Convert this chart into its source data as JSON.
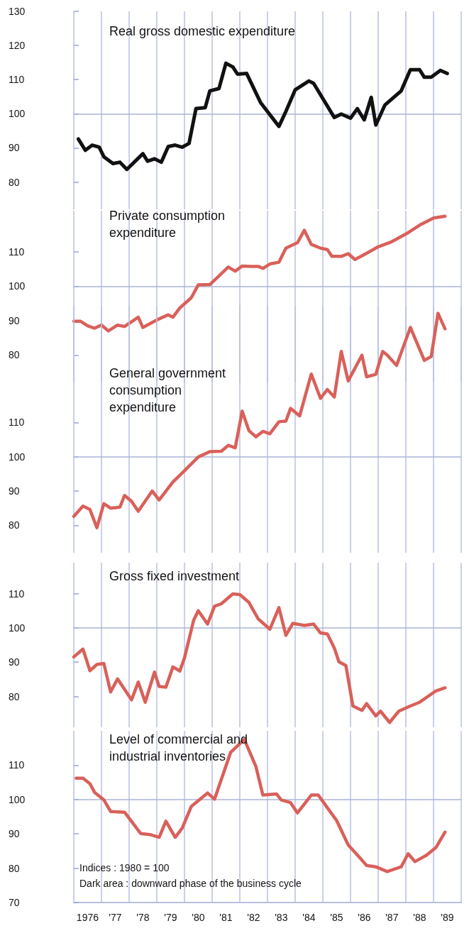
{
  "chart_data": [
    {
      "type": "line",
      "title": "Real gross domestic expenditure",
      "color": "#111111",
      "marker": "none",
      "grid": "x",
      "tick_labels": "y",
      "xlim": [
        "1976-01",
        "1990-01"
      ],
      "ylim": [
        72,
        130
      ],
      "yticks": [
        80,
        90,
        100,
        110,
        120,
        130
      ],
      "xticks": [
        {
          "value": "1976",
          "label": null
        },
        {
          "value": "1977",
          "label": null
        },
        {
          "value": "1978",
          "label": null
        },
        {
          "value": "1979",
          "label": null
        },
        {
          "value": "1980",
          "label": null
        },
        {
          "value": "1981",
          "label": null
        },
        {
          "value": "1982",
          "label": null
        },
        {
          "value": "1983",
          "label": null
        },
        {
          "value": "1984",
          "label": null
        },
        {
          "value": "1985",
          "label": null
        },
        {
          "value": "1986",
          "label": null
        },
        {
          "value": "1987",
          "label": null
        },
        {
          "value": "1988",
          "label": null
        },
        {
          "value": "1989",
          "label": null
        },
        {
          "value": "1990",
          "label": null
        }
      ],
      "ref_lines": [
        {
          "axis": "y",
          "value": 100,
          "color": "#a9b4d6"
        }
      ],
      "x": [
        "1976-03",
        "1976-06",
        "1976-09",
        "1976-12",
        "1977-02",
        "1977-06",
        "1977-09",
        "1977-12",
        "1978-07",
        "1978-09",
        "1978-12",
        "1979-03",
        "1979-06",
        "1979-09",
        "1979-12",
        "1980-03",
        "1980-06",
        "1980-10",
        "1980-12",
        "1981-04",
        "1981-07",
        "1981-10",
        "1981-12",
        "1982-04",
        "1982-10",
        "1983-06",
        "1983-09",
        "1984-01",
        "1984-07",
        "1984-09",
        "1985-06",
        "1985-09",
        "1986-01",
        "1986-04",
        "1986-07",
        "1986-10",
        "1986-12",
        "1987-04",
        "1987-11",
        "1988-03",
        "1988-07",
        "1988-09",
        "1988-12",
        "1989-04",
        "1989-07"
      ],
      "values": [
        92.6,
        89.3,
        90.8,
        90.2,
        87.4,
        85.4,
        85.8,
        83.7,
        88.3,
        86.1,
        86.8,
        85.8,
        90.4,
        90.8,
        90.2,
        91.3,
        101.5,
        101.8,
        106.7,
        107.4,
        114.8,
        113.7,
        111.6,
        111.8,
        103.3,
        96.3,
        100.7,
        107,
        109.6,
        108.9,
        98.9,
        99.9,
        98.7,
        101.5,
        98.2,
        104.8,
        96.7,
        102.6,
        106.7,
        112.9,
        112.9,
        110.7,
        110.7,
        112.7,
        111.8
      ]
    },
    {
      "type": "line",
      "title": "Private consumption expenditure",
      "color": "#d9605a",
      "marker": "none",
      "grid": "x",
      "tick_labels": "y",
      "xlim": [
        "1976-01",
        "1990-01"
      ],
      "ylim": [
        72,
        122
      ],
      "yticks": [
        80,
        90,
        100,
        110
      ],
      "xticks": [
        {
          "value": "1976",
          "label": null
        },
        {
          "value": "1977",
          "label": null
        },
        {
          "value": "1978",
          "label": null
        },
        {
          "value": "1979",
          "label": null
        },
        {
          "value": "1980",
          "label": null
        },
        {
          "value": "1981",
          "label": null
        },
        {
          "value": "1982",
          "label": null
        },
        {
          "value": "1983",
          "label": null
        },
        {
          "value": "1984",
          "label": null
        },
        {
          "value": "1985",
          "label": null
        },
        {
          "value": "1986",
          "label": null
        },
        {
          "value": "1987",
          "label": null
        },
        {
          "value": "1988",
          "label": null
        },
        {
          "value": "1989",
          "label": null
        },
        {
          "value": "1990",
          "label": null
        }
      ],
      "ref_lines": [
        {
          "axis": "y",
          "value": 100,
          "color": "#a9b4d6"
        }
      ],
      "x": [
        "1976-01",
        "1976-04",
        "1976-07",
        "1976-10",
        "1977-01",
        "1977-04",
        "1977-08",
        "1977-11",
        "1978-05",
        "1978-07",
        "1979-01",
        "1979-06",
        "1979-08",
        "1979-11",
        "1980-04",
        "1980-07",
        "1980-12",
        "1981-04",
        "1981-08",
        "1981-11",
        "1982-02",
        "1982-06",
        "1982-09",
        "1982-11",
        "1983-02",
        "1983-06",
        "1983-09",
        "1984-02",
        "1984-05",
        "1984-08",
        "1984-12",
        "1985-03",
        "1985-05",
        "1985-09",
        "1985-12",
        "1986-03",
        "1986-08",
        "1987-01",
        "1987-07",
        "1988-02",
        "1988-07",
        "1989-01",
        "1989-06"
      ],
      "values": [
        89.8,
        89.8,
        88.5,
        87.8,
        88.7,
        87,
        88.7,
        88.3,
        91,
        88,
        90.2,
        91.7,
        91,
        93.7,
        96.7,
        100.4,
        100.5,
        103,
        105.6,
        104.4,
        105.9,
        105.8,
        105.8,
        105.2,
        106.5,
        107,
        111.1,
        112.7,
        116.3,
        112.2,
        111.1,
        110.7,
        108.7,
        108.7,
        109.5,
        107.8,
        109.6,
        111.5,
        113,
        115.6,
        117.8,
        119.9,
        120.4
      ]
    },
    {
      "type": "line",
      "title": "General government consumption expenditure",
      "color": "#d9605a",
      "marker": "none",
      "grid": "x",
      "tick_labels": "y",
      "xlim": [
        "1976-01",
        "1990-01"
      ],
      "ylim": [
        72,
        144
      ],
      "yticks": [
        80,
        90,
        100,
        110
      ],
      "xticks": [
        {
          "value": "1976",
          "label": null
        },
        {
          "value": "1977",
          "label": null
        },
        {
          "value": "1978",
          "label": null
        },
        {
          "value": "1979",
          "label": null
        },
        {
          "value": "1980",
          "label": null
        },
        {
          "value": "1981",
          "label": null
        },
        {
          "value": "1982",
          "label": null
        },
        {
          "value": "1983",
          "label": null
        },
        {
          "value": "1984",
          "label": null
        },
        {
          "value": "1985",
          "label": null
        },
        {
          "value": "1986",
          "label": null
        },
        {
          "value": "1987",
          "label": null
        },
        {
          "value": "1988",
          "label": null
        },
        {
          "value": "1989",
          "label": null
        },
        {
          "value": "1990",
          "label": null
        }
      ],
      "ref_lines": [
        {
          "axis": "y",
          "value": 100,
          "color": "#a9b4d6"
        }
      ],
      "x": [
        "1976-01",
        "1976-05",
        "1976-08",
        "1976-11",
        "1977-02",
        "1977-05",
        "1977-09",
        "1977-11",
        "1978-02",
        "1978-05",
        "1978-11",
        "1979-02",
        "1979-08",
        "1980-01",
        "1980-07",
        "1980-12",
        "1981-05",
        "1981-08",
        "1981-11",
        "1982-02",
        "1982-05",
        "1982-08",
        "1982-11",
        "1983-02",
        "1983-06",
        "1983-09",
        "1983-11",
        "1984-03",
        "1984-08",
        "1984-12",
        "1985-03",
        "1985-06",
        "1985-09",
        "1985-12",
        "1986-06",
        "1986-08",
        "1986-12",
        "1987-03",
        "1987-05",
        "1987-09",
        "1988-03",
        "1988-09",
        "1988-12",
        "1989-03",
        "1989-06"
      ],
      "values": [
        82.6,
        85.6,
        84.6,
        79.3,
        86.3,
        85,
        85.3,
        88.7,
        87,
        84.1,
        90,
        87.4,
        92.6,
        95.9,
        99.9,
        101.5,
        101.6,
        103.3,
        102.6,
        113.3,
        107.6,
        105.8,
        107.4,
        106.7,
        110.2,
        110.4,
        114.1,
        111.9,
        124.1,
        117,
        119.6,
        117.4,
        130.7,
        122.1,
        129.6,
        123.3,
        124,
        130.7,
        129.6,
        126.6,
        137.7,
        128.1,
        129.2,
        141.8,
        137.3
      ]
    },
    {
      "type": "line",
      "title": "Gross fixed investment",
      "color": "#d9605a",
      "marker": "none",
      "grid": "x",
      "tick_labels": "y",
      "xlim": [
        "1976-01",
        "1990-01"
      ],
      "ylim": [
        71,
        119
      ],
      "yticks": [
        80,
        90,
        100,
        110
      ],
      "xticks": [
        {
          "value": "1976",
          "label": null
        },
        {
          "value": "1977",
          "label": null
        },
        {
          "value": "1978",
          "label": null
        },
        {
          "value": "1979",
          "label": null
        },
        {
          "value": "1980",
          "label": null
        },
        {
          "value": "1981",
          "label": null
        },
        {
          "value": "1982",
          "label": null
        },
        {
          "value": "1983",
          "label": null
        },
        {
          "value": "1984",
          "label": null
        },
        {
          "value": "1985",
          "label": null
        },
        {
          "value": "1986",
          "label": null
        },
        {
          "value": "1987",
          "label": null
        },
        {
          "value": "1988",
          "label": null
        },
        {
          "value": "1989",
          "label": null
        },
        {
          "value": "1990",
          "label": null
        }
      ],
      "ref_lines": [
        {
          "axis": "y",
          "value": 100,
          "color": "#a9b4d6"
        }
      ],
      "x": [
        "1976-01",
        "1976-05",
        "1976-08",
        "1976-11",
        "1977-02",
        "1977-05",
        "1977-08",
        "1978-02",
        "1978-05",
        "1978-08",
        "1978-12",
        "1979-02",
        "1979-05",
        "1979-08",
        "1979-11",
        "1980-01",
        "1980-05",
        "1980-07",
        "1980-11",
        "1981-02",
        "1981-05",
        "1981-10",
        "1982-01",
        "1982-05",
        "1982-09",
        "1983-02",
        "1983-06",
        "1983-09",
        "1983-12",
        "1984-05",
        "1984-09",
        "1984-12",
        "1985-03",
        "1985-06",
        "1985-08",
        "1985-11",
        "1986-02",
        "1986-06",
        "1986-08",
        "1986-12",
        "1987-02",
        "1987-06",
        "1987-10",
        "1988-03",
        "1988-07",
        "1989-02",
        "1989-06"
      ],
      "values": [
        91.5,
        93.8,
        87.5,
        89.3,
        89.6,
        81.3,
        85.1,
        79,
        84.2,
        78.3,
        87.1,
        82.9,
        82.7,
        88.6,
        87.4,
        91.2,
        102.2,
        105,
        101.1,
        106.3,
        107,
        109.9,
        109.7,
        107.4,
        102.6,
        99.6,
        105.9,
        97.8,
        101.3,
        100.7,
        101.1,
        98.5,
        98.2,
        94.1,
        90.1,
        89,
        77.2,
        75.9,
        77.9,
        74.3,
        75.7,
        72.4,
        75.7,
        77.2,
        78.3,
        81.6,
        82.5
      ]
    },
    {
      "type": "line",
      "title": "Level of commercial and industrial inventories",
      "color": "#d9605a",
      "marker": "none",
      "grid": "x",
      "xlim": [
        "1976-01",
        "1990-01"
      ],
      "ylim": [
        70,
        120
      ],
      "yticks": [
        70,
        80,
        90,
        100,
        110
      ],
      "xticks": [
        {
          "value": "1976",
          "label": null
        },
        {
          "value": "1977",
          "label": null
        },
        {
          "value": "1978",
          "label": null
        },
        {
          "value": "1979",
          "label": null
        },
        {
          "value": "1980",
          "label": null
        },
        {
          "value": "1981",
          "label": null
        },
        {
          "value": "1982",
          "label": null
        },
        {
          "value": "1983",
          "label": null
        },
        {
          "value": "1984",
          "label": null
        },
        {
          "value": "1985",
          "label": null
        },
        {
          "value": "1986",
          "label": null
        },
        {
          "value": "1987",
          "label": null
        },
        {
          "value": "1988",
          "label": null
        },
        {
          "value": "1989",
          "label": null
        },
        {
          "value": "1990",
          "label": null
        },
        {
          "value": "1976-07",
          "label": "1976"
        },
        {
          "value": "1977-07",
          "label": "'77"
        },
        {
          "value": "1978-07",
          "label": "'78"
        },
        {
          "value": "1979-07",
          "label": "'79"
        },
        {
          "value": "1980-07",
          "label": "'80"
        },
        {
          "value": "1981-07",
          "label": "'81"
        },
        {
          "value": "1982-07",
          "label": "'82"
        },
        {
          "value": "1983-07",
          "label": "'83"
        },
        {
          "value": "1984-07",
          "label": "'84"
        },
        {
          "value": "1985-07",
          "label": "'85"
        },
        {
          "value": "1986-07",
          "label": "'86"
        },
        {
          "value": "1987-07",
          "label": "'87"
        },
        {
          "value": "1988-07",
          "label": "'88"
        },
        {
          "value": "1989-07",
          "label": "'89"
        }
      ],
      "ref_lines": [
        {
          "axis": "y",
          "value": 100,
          "color": "#a9b4d6"
        }
      ],
      "annotations": [
        "Indices : 1980 = 100",
        "Dark area : downward phase of the business cycle"
      ],
      "x": [
        "1976-02",
        "1976-05",
        "1976-08",
        "1976-10",
        "1977-02",
        "1977-05",
        "1977-11",
        "1978-06",
        "1978-10",
        "1979-02",
        "1979-05",
        "1979-09",
        "1979-12",
        "1980-04",
        "1980-08",
        "1980-11",
        "1981-02",
        "1981-09",
        "1982-03",
        "1982-08",
        "1982-11",
        "1983-05",
        "1983-07",
        "1983-11",
        "1984-02",
        "1984-08",
        "1984-11",
        "1985-03",
        "1985-07",
        "1985-12",
        "1986-05",
        "1986-08",
        "1986-12",
        "1987-05",
        "1987-11",
        "1988-02",
        "1988-05",
        "1988-10",
        "1989-02",
        "1989-06"
      ],
      "values": [
        106.2,
        106.2,
        104.6,
        102.1,
        99.9,
        96.5,
        96.3,
        90.1,
        89.8,
        89,
        93.7,
        89,
        91.6,
        98,
        100.2,
        101.9,
        100.1,
        113.7,
        117.5,
        109.6,
        101.3,
        101.6,
        99.9,
        99.1,
        96.1,
        101.3,
        101.3,
        97.6,
        93.9,
        86.8,
        83.1,
        80.8,
        80.4,
        79,
        80.4,
        84.2,
        81.9,
        83.8,
        86,
        90.5
      ]
    }
  ]
}
